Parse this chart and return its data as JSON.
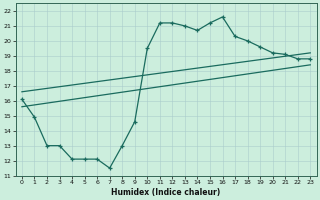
{
  "xlabel": "Humidex (Indice chaleur)",
  "bg_color": "#cceedd",
  "line_color": "#1a6b5e",
  "xlim": [
    -0.5,
    23.5
  ],
  "ylim": [
    11,
    22.5
  ],
  "xticks": [
    0,
    1,
    2,
    3,
    4,
    5,
    6,
    7,
    8,
    9,
    10,
    11,
    12,
    13,
    14,
    15,
    16,
    17,
    18,
    19,
    20,
    21,
    22,
    23
  ],
  "yticks": [
    11,
    12,
    13,
    14,
    15,
    16,
    17,
    18,
    19,
    20,
    21,
    22
  ],
  "main_x": [
    0,
    1,
    2,
    3,
    4,
    5,
    6,
    7,
    8,
    9,
    10,
    11,
    12,
    13,
    14,
    15,
    16,
    17,
    18,
    19,
    20,
    21,
    22,
    23
  ],
  "main_y": [
    16.1,
    14.9,
    13.0,
    13.0,
    12.1,
    12.1,
    12.1,
    11.5,
    13.0,
    14.6,
    19.5,
    21.2,
    21.2,
    21.0,
    20.7,
    21.2,
    21.6,
    20.3,
    20.0,
    19.6,
    19.2,
    19.1,
    18.8,
    18.8
  ],
  "upper_line_x": [
    0,
    23
  ],
  "upper_line_y": [
    16.6,
    19.2
  ],
  "lower_line_x": [
    0,
    23
  ],
  "lower_line_y": [
    15.6,
    18.4
  ]
}
